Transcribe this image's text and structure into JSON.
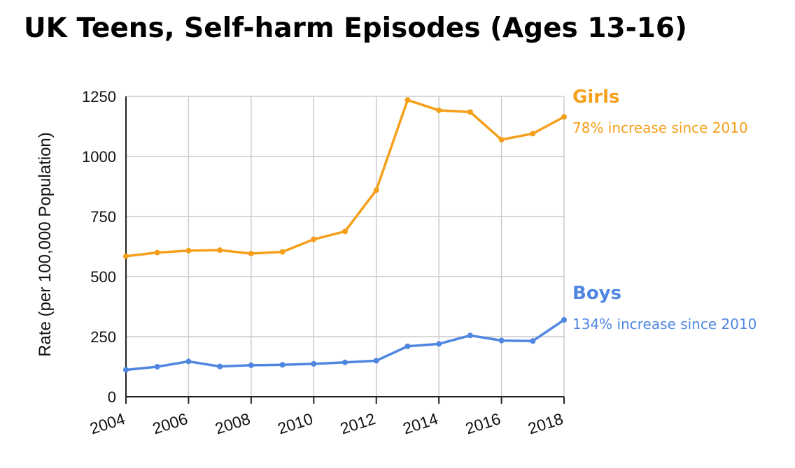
{
  "chart_data": {
    "type": "line",
    "title": "UK Teens, Self-harm Episodes (Ages 13-16)",
    "ylabel": "Rate (per 100,000 Population)",
    "xlabel": "",
    "x": [
      2004,
      2005,
      2006,
      2007,
      2008,
      2009,
      2010,
      2011,
      2012,
      2013,
      2014,
      2015,
      2016,
      2017,
      2018
    ],
    "x_ticks": [
      "2004",
      "2006",
      "2008",
      "2010",
      "2012",
      "2014",
      "2016",
      "2018"
    ],
    "y_ticks": [
      "0",
      "250",
      "500",
      "750",
      "1000",
      "1250"
    ],
    "xlim": [
      2004,
      2018
    ],
    "ylim": [
      0,
      1250
    ],
    "grid": true,
    "series": [
      {
        "name": "Girls",
        "color": "#F59F1A",
        "annotation": "78% increase since 2010",
        "values": [
          585,
          600,
          608,
          610,
          596,
          603,
          655,
          688,
          860,
          1235,
          1192,
          1185,
          1070,
          1095,
          1165
        ]
      },
      {
        "name": "Boys",
        "color": "#4F86E0",
        "annotation": "134% increase since 2010",
        "values": [
          112,
          125,
          147,
          126,
          131,
          133,
          137,
          143,
          150,
          210,
          220,
          255,
          234,
          232,
          320
        ]
      }
    ]
  }
}
